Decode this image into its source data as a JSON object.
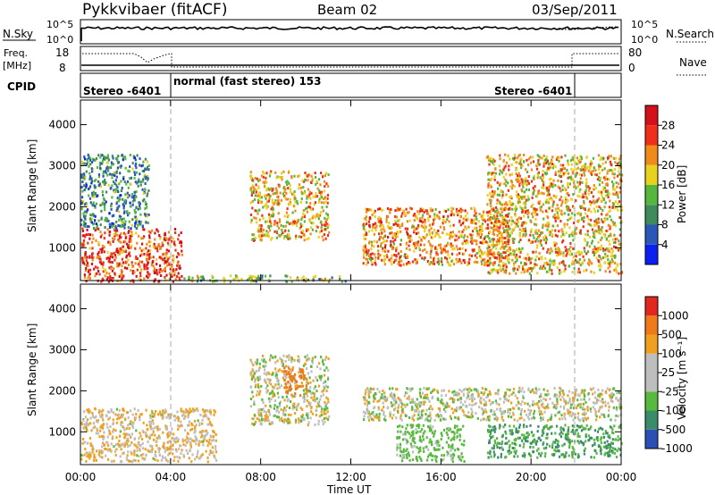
{
  "header": {
    "station": "Pykkvibaer (fitACF)",
    "beam": "Beam 02",
    "date": "03/Sep/2011"
  },
  "status_panels": {
    "nsky_label": "N.Sky",
    "nsky_ticks": [
      "10^5",
      "10^0"
    ],
    "nsearch_label": "N.Search",
    "nsearch_ticks": [
      "10^5",
      "10^0"
    ],
    "freq_label": [
      "Freq.",
      "[MHz]"
    ],
    "freq_ticks": [
      "18",
      "8"
    ],
    "nave_label": "Nave",
    "nave_ticks": [
      "80",
      "0"
    ],
    "cpid_label": "CPID",
    "cpid_segments": [
      {
        "label": "Stereo -6401",
        "start": 0.0,
        "end": 4.0
      },
      {
        "label": "normal (fast stereo) 153",
        "start": 4.0,
        "end": 22.0
      },
      {
        "label": "Stereo -6401",
        "start": 22.0,
        "end": 24.0
      }
    ]
  },
  "x_axis": {
    "label": "Time UT",
    "ticks": [
      "00:00",
      "04:00",
      "08:00",
      "12:00",
      "16:00",
      "20:00",
      "00:00"
    ],
    "range": [
      0,
      24
    ]
  },
  "y_axis": {
    "label": "Slant Range [km]",
    "ticks": [
      "1000",
      "2000",
      "3000",
      "4000"
    ],
    "range": [
      200,
      4600
    ]
  },
  "colorbars": {
    "power": {
      "label": "Power [dB]",
      "ticks": [
        "4",
        "8",
        "12",
        "16",
        "20",
        "24",
        "28"
      ],
      "colors": [
        "#0a1ff0",
        "#2a58b8",
        "#3f8a5a",
        "#55b83c",
        "#e8d21e",
        "#f08a1a",
        "#ef2f1a",
        "#d4101a"
      ]
    },
    "velocity": {
      "label": "Velocity [m s⁻¹]",
      "ticks": [
        "1000",
        "500",
        "100",
        "25",
        "-25",
        "-100",
        "-500",
        "-1000"
      ],
      "colors": [
        "#2a4fb5",
        "#3a8c6a",
        "#57b93e",
        "#bebebe",
        "#bebebe",
        "#f0a020",
        "#ef7a18",
        "#e02820"
      ]
    }
  },
  "chart_data": [
    {
      "type": "heatmap",
      "title": "Power",
      "xlabel": "Time UT",
      "ylabel": "Slant Range [km]",
      "xlim": [
        0,
        24
      ],
      "ylim": [
        200,
        4600
      ],
      "colorbar": "Power [dB]",
      "regions": [
        {
          "t": [
            0,
            4.5
          ],
          "r": [
            200,
            1500
          ],
          "value": 26
        },
        {
          "t": [
            0,
            3
          ],
          "r": [
            1500,
            3300
          ],
          "value": 10
        },
        {
          "t": [
            4.5,
            12
          ],
          "r": [
            200,
            350
          ],
          "value": 14
        },
        {
          "t": [
            7.5,
            11
          ],
          "r": [
            1200,
            2900
          ],
          "value": 20
        },
        {
          "t": [
            12.5,
            19
          ],
          "r": [
            600,
            2000
          ],
          "value": 22
        },
        {
          "t": [
            18,
            24
          ],
          "r": [
            400,
            3300
          ],
          "value": 20
        }
      ]
    },
    {
      "type": "heatmap",
      "title": "Velocity",
      "xlabel": "Time UT",
      "ylabel": "Slant Range [km]",
      "xlim": [
        0,
        24
      ],
      "ylim": [
        200,
        4600
      ],
      "colorbar": "Velocity [m s-1]",
      "regions": [
        {
          "t": [
            0,
            6
          ],
          "r": [
            300,
            1600
          ],
          "value": -80
        },
        {
          "t": [
            7.5,
            11
          ],
          "r": [
            1200,
            2900
          ],
          "value": 0
        },
        {
          "t": [
            9,
            10
          ],
          "r": [
            1900,
            2600
          ],
          "value": -600
        },
        {
          "t": [
            12.5,
            24
          ],
          "r": [
            1300,
            2100
          ],
          "value": 0
        },
        {
          "t": [
            14,
            17
          ],
          "r": [
            300,
            1200
          ],
          "value": 150
        },
        {
          "t": [
            18,
            24
          ],
          "r": [
            400,
            1200
          ],
          "value": 300
        }
      ]
    }
  ]
}
